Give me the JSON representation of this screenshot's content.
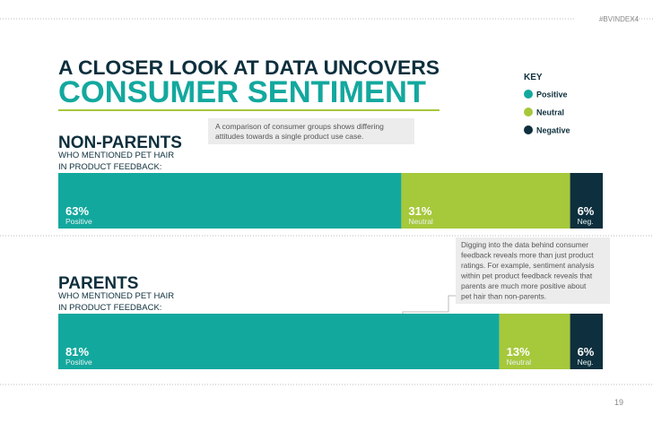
{
  "tag": "#BVINDEX4",
  "title_lines": [
    "A CLOSER LOOK AT DATA UNCOVERS",
    "CONSUMER SENTIMENT"
  ],
  "intro_lines": [
    "A comparison of consumer groups shows differing",
    "attitudes towards a single product use case."
  ],
  "legend": {
    "title": "KEY",
    "items": [
      {
        "name": "Positive",
        "color": "#13a89e"
      },
      {
        "name": "Neutral",
        "color": "#a6c83b"
      },
      {
        "name": "Negative",
        "color": "#0e2f3d"
      }
    ]
  },
  "note_lines": [
    "Digging into the data behind consumer",
    "feedback reveals more than just product",
    "ratings. For example, sentiment analysis",
    "within pet product feedback reveals that",
    "parents are much more positive about",
    "pet hair than non-parents."
  ],
  "page_number": "19",
  "chart_data": [
    {
      "type": "bar",
      "stacked": true,
      "orientation": "horizontal",
      "title": "NON-PARENTS",
      "subtitle_lines": [
        "WHO MENTIONED PET HAIR",
        "IN PRODUCT FEEDBACK:"
      ],
      "xlim": [
        0,
        100
      ],
      "series": [
        {
          "name": "Positive",
          "color": "#13a89e",
          "values": [
            63
          ],
          "value_labels": [
            "63%"
          ]
        },
        {
          "name": "Neutral",
          "color": "#a6c83b",
          "values": [
            31
          ],
          "value_labels": [
            "31%"
          ]
        },
        {
          "name": "Neg.",
          "color": "#0e2f3d",
          "values": [
            6
          ],
          "value_labels": [
            "6%"
          ]
        }
      ]
    },
    {
      "type": "bar",
      "stacked": true,
      "orientation": "horizontal",
      "title": "PARENTS",
      "subtitle_lines": [
        "WHO MENTIONED PET HAIR",
        "IN PRODUCT FEEDBACK:"
      ],
      "xlim": [
        0,
        100
      ],
      "series": [
        {
          "name": "Positive",
          "color": "#13a89e",
          "values": [
            81
          ],
          "value_labels": [
            "81%"
          ]
        },
        {
          "name": "Neutral",
          "color": "#a6c83b",
          "values": [
            13
          ],
          "value_labels": [
            "13%"
          ]
        },
        {
          "name": "Neg.",
          "color": "#0e2f3d",
          "values": [
            6
          ],
          "value_labels": [
            "6%"
          ]
        }
      ]
    }
  ]
}
